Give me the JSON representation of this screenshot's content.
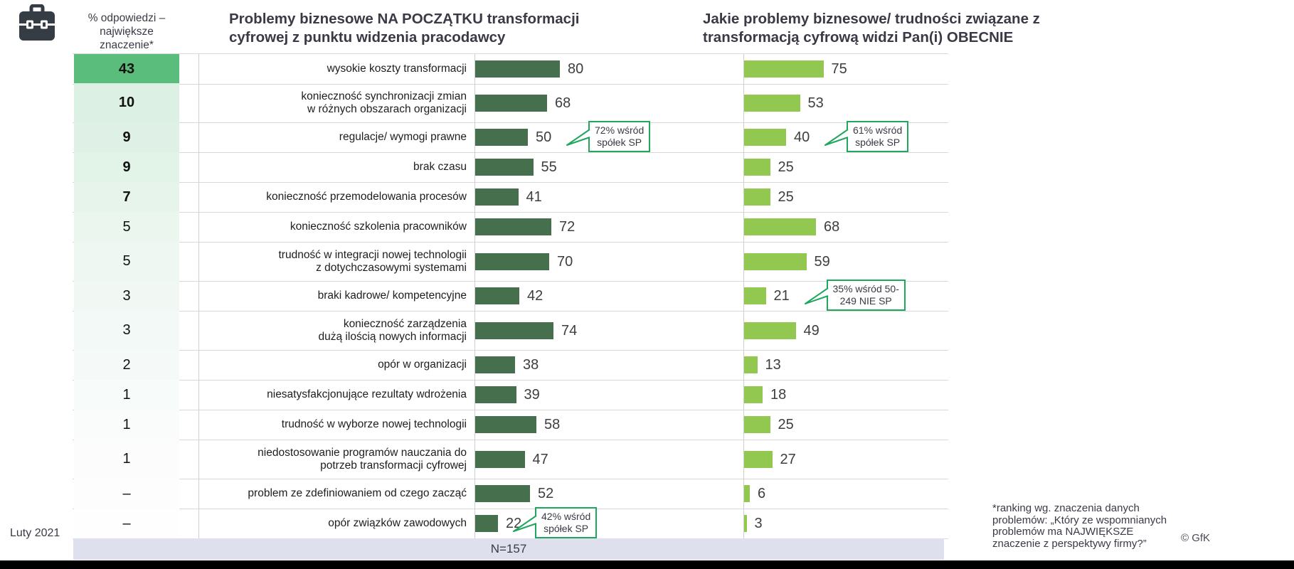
{
  "icon": {
    "name": "briefcase"
  },
  "rank_column": {
    "header": "% odpowiedzi –\nnajwiększe\nznaczenie*"
  },
  "chart_data": {
    "type": "bar",
    "orientation": "horizontal",
    "value_range": [
      0,
      100
    ],
    "grid": "row-separators",
    "titles": {
      "left": "Problemy biznesowe NA POCZĄTKU transformacji cyfrowej z punktu widzenia pracodawcy",
      "right": "Jakie problemy biznesowe/ trudności związane z transformacją cyfrową widzi Pan(i) OBECNIE"
    },
    "categories": [
      "wysokie koszty transformacji",
      "konieczność synchronizacji zmian\nw różnych obszarach organizacji",
      "regulacje/ wymogi prawne",
      "brak czasu",
      "konieczność przemodelowania procesów",
      "konieczność szkolenia pracowników",
      "trudność w integracji nowej technologii\nz dotychczasowymi systemami",
      "braki kadrowe/ kompetencyjne",
      "konieczność zarządzenia\ndużą ilością nowych informacji",
      "opór w organizacji",
      "niesatysfakcjonujące rezultaty wdrożenia",
      "trudność w wyborze nowej technologii",
      "niedostosowanie programów nauczania do\npotrzeb transformacji cyfrowej",
      "problem ze zdefiniowaniem od czego zacząć",
      "opór związków zawodowych"
    ],
    "ranking_values": [
      "43",
      "10",
      "9",
      "9",
      "7",
      "5",
      "5",
      "3",
      "3",
      "2",
      "1",
      "1",
      "1",
      "–",
      "–"
    ],
    "rank_cell_colors": [
      "#5BBD7B",
      "#DCF0E3",
      "#DFF1E6",
      "#E2F3E8",
      "#E7F4EC",
      "#EBF6EF",
      "#EEF7F1",
      "#F1F8F4",
      "#F3F9F6",
      "#F5FAF8",
      "#F7FBF9",
      "#F9FCFA",
      "#FBFCFB",
      "#FDFDFD",
      "#FEFEFE"
    ],
    "series": [
      {
        "name": "NA POCZĄTKU",
        "color": "#456F4D",
        "values": [
          80,
          68,
          50,
          55,
          41,
          72,
          70,
          42,
          74,
          38,
          39,
          58,
          47,
          52,
          22
        ]
      },
      {
        "name": "OBECNIE",
        "color": "#92C850",
        "values": [
          75,
          53,
          40,
          25,
          25,
          68,
          59,
          21,
          49,
          13,
          18,
          25,
          27,
          6,
          3
        ]
      }
    ],
    "annotations": [
      {
        "text": "72% wśród\nspółek SP",
        "row": 3,
        "chart": "left"
      },
      {
        "text": "61% wśród\nspółek SP",
        "row": 3,
        "chart": "right"
      },
      {
        "text": "35% wśród 50-\n249 NIE SP",
        "row": 8,
        "chart": "right"
      },
      {
        "text": "42% wśród\nspółek SP",
        "row": 15,
        "chart": "left"
      }
    ],
    "sample_size": "N=157",
    "annotation_border_color": "#21A75D",
    "sample_band_color": "#DEE1ED"
  },
  "footer": {
    "date": "Luty 2021",
    "footnote": "*ranking wg. znaczenia danych\nproblemów: „Który ze wspomnianych\nproblemów ma NAJWIĘKSZE\nznaczenie z perspektywy firmy?”",
    "copyright": "© GfK"
  }
}
